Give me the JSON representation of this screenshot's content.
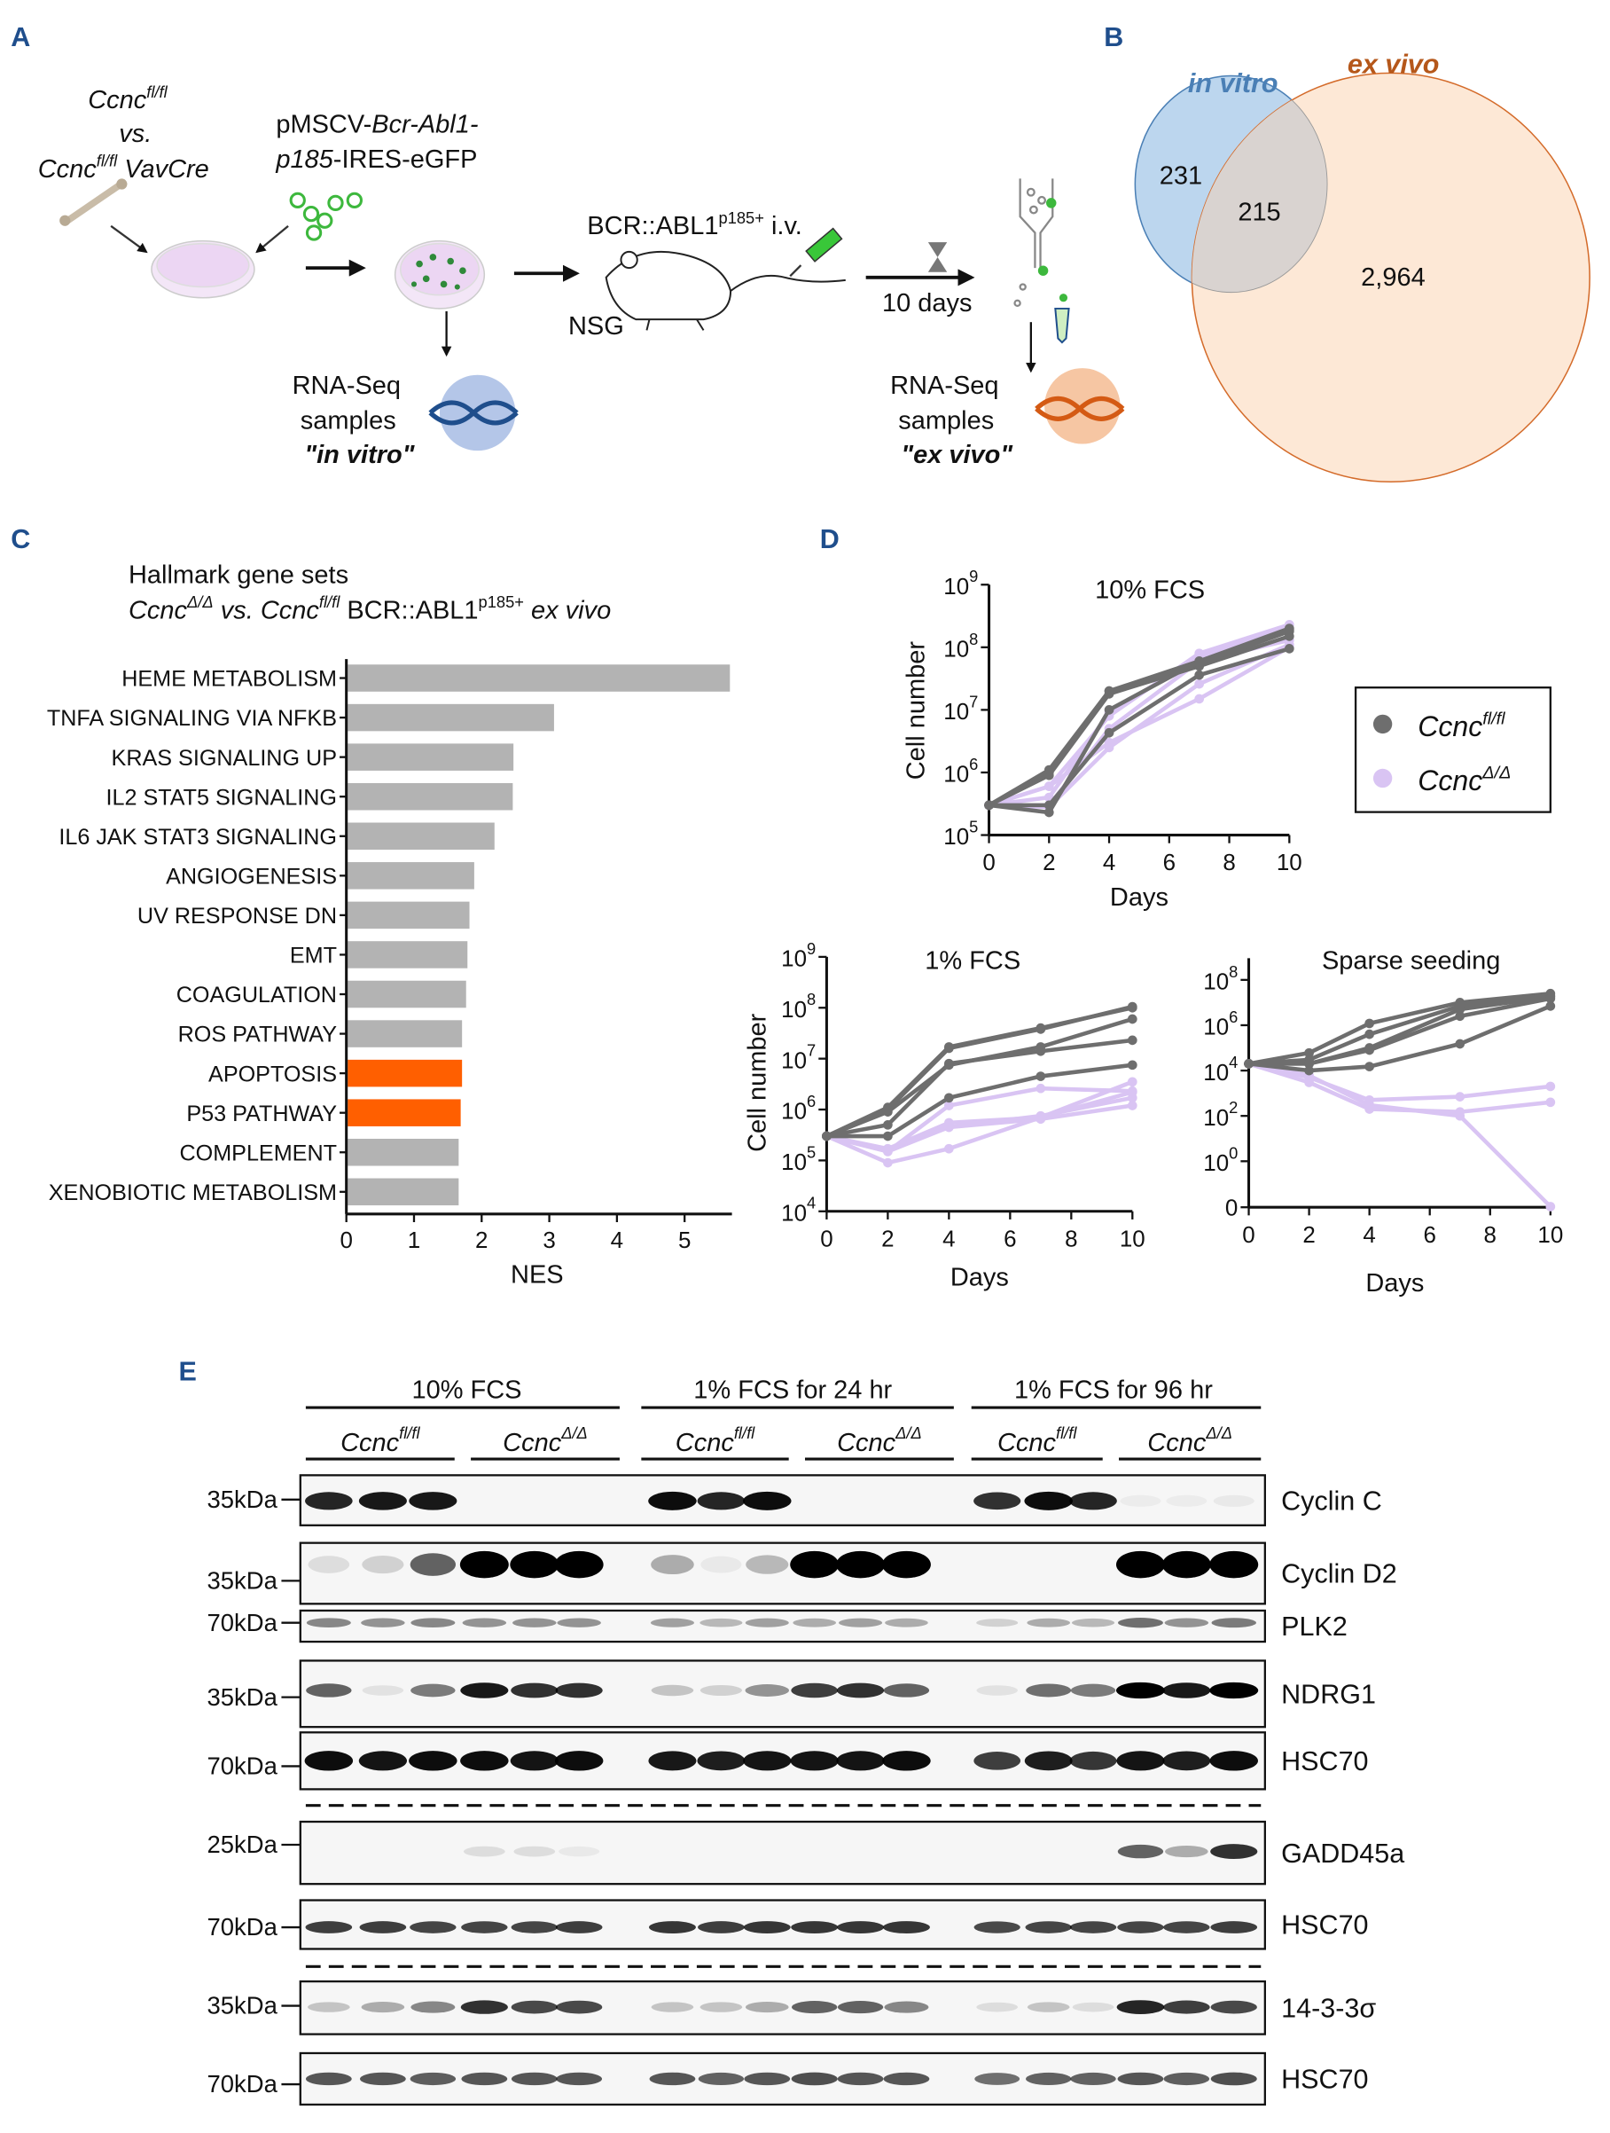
{
  "panel_labels": {
    "a": "A",
    "b": "B",
    "c": "C",
    "d": "D",
    "e": "E"
  },
  "panel_a": {
    "ccnc": "Ccnc",
    "flfl": "fl/fl",
    "vs": "vs.",
    "vavcre": " VavCre",
    "vector_line1_a": "pMSCV-",
    "vector_line1_b": "Bcr-Abl1-",
    "vector_line2_a": "p185",
    "vector_line2_b": "-IRES-eGFP",
    "injection_a": "BCR::ABL1",
    "injection_sup": "p185+",
    "injection_b": " i.v.",
    "mouse_strain": "NSG",
    "duration": "10 days",
    "rnaseq": "RNA-Seq",
    "samples": "samples",
    "in_vitro": "\"in vitro\"",
    "ex_vivo": "\"ex vivo\""
  },
  "panel_b": {
    "set1_label": "in vitro",
    "set2_label": "ex vivo",
    "only_set1": "231",
    "overlap": "215",
    "only_set2": "2,964",
    "colors": {
      "in_vitro": "#bcd6ee",
      "ex_vivo": "#fde8d6",
      "overlap": "#d9d3d0"
    }
  },
  "panel_c_title": {
    "line1": "Hallmark gene sets",
    "ccnc": "Ccnc",
    "delta": "Δ/Δ",
    "vs": " vs. ",
    "flfl": "fl/fl",
    "bcr": " BCR::ABL1",
    "p185": "p185+",
    "exvivo": " ex vivo"
  },
  "legend": {
    "ccnc": "Ccnc",
    "items": [
      {
        "sup": "fl/fl",
        "color": "#6e6e6e"
      },
      {
        "sup": "Δ/Δ",
        "color": "#d9c4f3"
      }
    ]
  },
  "chart_data": [
    {
      "type": "bar",
      "orientation": "horizontal",
      "categories": [
        "HEME METABOLISM",
        "TNFA SIGNALING VIA NFKB",
        "KRAS SIGNALING UP",
        "IL2 STAT5 SIGNALING",
        "IL6 JAK STAT3 SIGNALING",
        "ANGIOGENESIS",
        "UV RESPONSE DN",
        "EMT",
        "COAGULATION",
        "ROS PATHWAY",
        "APOPTOSIS",
        "P53 PATHWAY",
        "COMPLEMENT",
        "XENOBIOTIC METABOLISM"
      ],
      "values": [
        5.65,
        3.05,
        2.45,
        2.44,
        2.17,
        1.87,
        1.8,
        1.77,
        1.75,
        1.69,
        1.69,
        1.67,
        1.64,
        1.64
      ],
      "colors": [
        "#b3b3b3",
        "#b3b3b3",
        "#b3b3b3",
        "#b3b3b3",
        "#b3b3b3",
        "#b3b3b3",
        "#b3b3b3",
        "#b3b3b3",
        "#b3b3b3",
        "#b3b3b3",
        "#ff5f00",
        "#ff5f00",
        "#b3b3b3",
        "#b3b3b3"
      ],
      "xlabel": "NES",
      "xlim": [
        0,
        5.7
      ],
      "xticks": [
        "0",
        "1",
        "2",
        "3",
        "4",
        "5"
      ]
    },
    {
      "type": "line",
      "title": "10% FCS",
      "xlabel": "Days",
      "ylabel": "Cell number",
      "yscale": "log",
      "x": [
        0,
        2,
        4,
        7,
        10
      ],
      "xticks": [
        "0",
        "2",
        "4",
        "6",
        "8",
        "10"
      ],
      "ytick_exponents": [
        "5",
        "6",
        "7",
        "8",
        "9"
      ],
      "ylim_log10": [
        5,
        9
      ],
      "series": [
        {
          "name": "Ccnc fl/fl",
          "color": "#6e6e6e",
          "lines": [
            [
              300000.0,
              1000000.0,
              20000000.0,
              60000000.0,
              200000000.0
            ],
            [
              300000.0,
              900000.0,
              18000000.0,
              50000000.0,
              150000000.0
            ],
            [
              300000.0,
              230000.0,
              10000000.0,
              60000000.0,
              190000000.0
            ],
            [
              300000.0,
              300000.0,
              4300000.0,
              36000000.0,
              95000000.0
            ],
            [
              300000.0,
              1100000.0,
              20000000.0,
              55000000.0,
              180000000.0
            ]
          ]
        },
        {
          "name": "Ccnc Δ/Δ",
          "color": "#d9c4f3",
          "lines": [
            [
              300000.0,
              600000.0,
              8000000.0,
              80000000.0,
              230000000.0
            ],
            [
              300000.0,
              300000.0,
              5000000.0,
              60000000.0,
              130000000.0
            ],
            [
              300000.0,
              280000.0,
              2500000.0,
              26000000.0,
              110000000.0
            ],
            [
              300000.0,
              600000.0,
              3000000.0,
              15000000.0,
              100000000.0
            ],
            [
              300000.0,
              400000.0,
              9000000.0,
              70000000.0,
              200000000.0
            ]
          ]
        }
      ],
      "legend": "right"
    },
    {
      "type": "line",
      "title": "1% FCS",
      "xlabel": "Days",
      "ylabel": "Cell number",
      "yscale": "log",
      "x": [
        0,
        2,
        4,
        7,
        10
      ],
      "xticks": [
        "0",
        "2",
        "4",
        "6",
        "8",
        "10"
      ],
      "ytick_exponents": [
        "4",
        "5",
        "6",
        "7",
        "8",
        "9"
      ],
      "ylim_log10": [
        4,
        9
      ],
      "series": [
        {
          "name": "Ccnc fl/fl",
          "color": "#6e6e6e",
          "lines": [
            [
              300000.0,
              1100000.0,
              17000000.0,
              40000000.0,
              100000000.0
            ],
            [
              300000.0,
              1000000.0,
              16000000.0,
              38000000.0,
              105000000.0
            ],
            [
              300000.0,
              900000.0,
              7500000.0,
              17000000.0,
              60000000.0
            ],
            [
              300000.0,
              500000.0,
              8000000.0,
              14000000.0,
              23000000.0
            ],
            [
              300000.0,
              300000.0,
              1700000.0,
              4500000.0,
              7500000.0
            ]
          ]
        },
        {
          "name": "Ccnc Δ/Δ",
          "color": "#d9c4f3",
          "lines": [
            [
              300000.0,
              150000.0,
              1200000.0,
              2600000.0,
              2300000.0
            ],
            [
              300000.0,
              170000.0,
              550000.0,
              700000.0,
              3500000.0
            ],
            [
              300000.0,
              160000.0,
              450000.0,
              750000.0,
              1700000.0
            ],
            [
              300000.0,
              150000.0,
              450000.0,
              650000.0,
              1200000.0
            ],
            [
              300000.0,
              90000.0,
              170000.0,
              700000.0,
              2200000.0
            ]
          ]
        }
      ]
    },
    {
      "type": "line",
      "title": "Sparse seeding",
      "xlabel": "Days",
      "yscale": "log",
      "x": [
        0,
        2,
        4,
        7,
        10
      ],
      "xticks": [
        "0",
        "2",
        "4",
        "6",
        "8",
        "10"
      ],
      "ytick_exponents": [
        "0",
        "2",
        "4",
        "6",
        "8"
      ],
      "zero_tick": "0",
      "ylim_log10": [
        0,
        8
      ],
      "series": [
        {
          "name": "Ccnc fl/fl",
          "color": "#6e6e6e",
          "lines": [
            [
              20000.0,
              60000.0,
              1200000.0,
              10000000.0,
              25000000.0
            ],
            [
              20000.0,
              30000.0,
              400000.0,
              7000000.0,
              20000000.0
            ],
            [
              20000.0,
              20000.0,
              100000.0,
              5000000.0,
              18000000.0
            ],
            [
              20000.0,
              10000.0,
              15000.0,
              150000.0,
              7000000.0
            ],
            [
              20000.0,
              20000.0,
              80000.0,
              2500000.0,
              15000000.0
            ]
          ]
        },
        {
          "name": "Ccnc Δ/Δ",
          "color": "#d9c4f3",
          "lines": [
            [
              20000.0,
              5000.0,
              500,
              700,
              2000
            ],
            [
              20000.0,
              3000.0,
              200,
              150,
              400
            ],
            [
              20000.0,
              6000.0,
              300,
              100,
              0
            ]
          ]
        }
      ]
    }
  ],
  "panel_e": {
    "conditions": [
      "10% FCS",
      "1% FCS for 24 hr",
      "1% FCS for 96 hr"
    ],
    "genotype_base": "Ccnc",
    "genotypes": [
      "fl/fl",
      "Δ/Δ",
      "fl/fl",
      "Δ/Δ",
      "fl/fl",
      "Δ/Δ"
    ],
    "rows": [
      {
        "protein": "Cyclin C",
        "mw": "35kDa",
        "bands": [
          0.85,
          0.9,
          0.9,
          0,
          0,
          0,
          0.95,
          0.85,
          0.95,
          0,
          0,
          0,
          0.8,
          0.95,
          0.85,
          0.04,
          0.04,
          0.05
        ]
      },
      {
        "protein": "Cyclin D2",
        "mw": "35kDa",
        "bands": [
          0.1,
          0.15,
          0.6,
          1,
          1,
          1,
          0.3,
          0.05,
          0.25,
          1,
          1,
          1,
          0,
          0,
          0,
          1,
          1,
          1
        ]
      },
      {
        "protein": "PLK2",
        "mw": "70kDa",
        "bands": [
          0.45,
          0.4,
          0.45,
          0.4,
          0.4,
          0.4,
          0.35,
          0.25,
          0.35,
          0.3,
          0.35,
          0.3,
          0.15,
          0.3,
          0.25,
          0.55,
          0.4,
          0.5
        ]
      },
      {
        "protein": "NDRG1",
        "mw": "35kDa",
        "bands": [
          0.6,
          0.08,
          0.5,
          0.9,
          0.8,
          0.8,
          0.2,
          0.15,
          0.4,
          0.75,
          0.8,
          0.6,
          0.08,
          0.55,
          0.5,
          1,
          0.9,
          1
        ]
      },
      {
        "protein": "HSC70",
        "mw": "70kDa",
        "bands": [
          0.95,
          0.92,
          0.95,
          0.95,
          0.92,
          0.95,
          0.9,
          0.88,
          0.92,
          0.92,
          0.92,
          0.95,
          0.75,
          0.88,
          0.78,
          0.92,
          0.88,
          0.95
        ]
      },
      {
        "protein": "GADD45a",
        "mw": "25kDa",
        "bands": [
          0,
          0,
          0,
          0.1,
          0.1,
          0.05,
          0,
          0,
          0,
          0,
          0,
          0,
          0,
          0,
          0,
          0.6,
          0.3,
          0.8
        ]
      },
      {
        "protein": "HSC70",
        "mw": "70kDa",
        "bands": [
          0.75,
          0.75,
          0.72,
          0.72,
          0.72,
          0.75,
          0.78,
          0.75,
          0.78,
          0.78,
          0.78,
          0.78,
          0.7,
          0.72,
          0.72,
          0.72,
          0.72,
          0.75
        ]
      },
      {
        "protein": "14-3-3σ",
        "mw": "35kDa",
        "bands": [
          0.2,
          0.3,
          0.45,
          0.8,
          0.7,
          0.7,
          0.2,
          0.2,
          0.3,
          0.6,
          0.6,
          0.45,
          0.1,
          0.2,
          0.1,
          0.85,
          0.75,
          0.7
        ]
      },
      {
        "protein": "HSC70",
        "mw": "70kDa",
        "bands": [
          0.65,
          0.65,
          0.62,
          0.65,
          0.65,
          0.65,
          0.65,
          0.6,
          0.65,
          0.68,
          0.65,
          0.65,
          0.55,
          0.6,
          0.6,
          0.65,
          0.62,
          0.68
        ]
      }
    ]
  }
}
